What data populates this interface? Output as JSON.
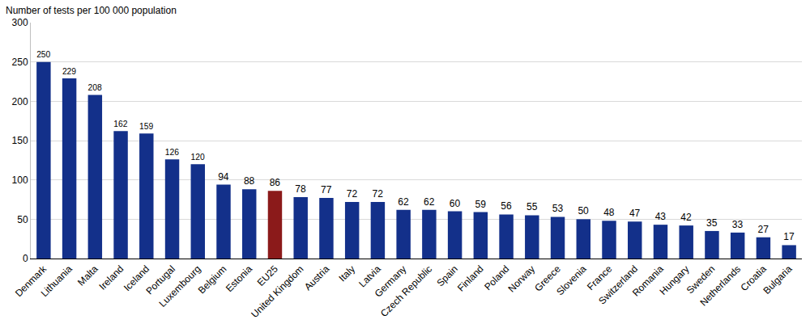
{
  "chart_data": {
    "type": "bar",
    "ylabel": "Number of tests per 100 000 population",
    "categories": [
      "Denmark",
      "Lithuania",
      "Malta",
      "Ireland",
      "Iceland",
      "Portugal",
      "Luxembourg",
      "Belgium",
      "Estonia",
      "EU25",
      "United Kingdom",
      "Austria",
      "Italy",
      "Latvia",
      "Germany",
      "Czech Republic",
      "Spain",
      "Finland",
      "Poland",
      "Norway",
      "Greece",
      "Slovenia",
      "France",
      "Switzerland",
      "Romania",
      "Hungary",
      "Sweden",
      "Netherlands",
      "Croatia",
      "Bulgaria"
    ],
    "values": [
      250,
      229,
      208,
      162,
      159,
      126,
      120,
      94,
      88,
      86,
      78,
      77,
      72,
      72,
      62,
      62,
      60,
      59,
      56,
      55,
      53,
      50,
      48,
      47,
      43,
      42,
      35,
      33,
      27,
      17
    ],
    "colors": [
      "#13308a",
      "#13308a",
      "#13308a",
      "#13308a",
      "#13308a",
      "#13308a",
      "#13308a",
      "#13308a",
      "#13308a",
      "#8b1a1a",
      "#13308a",
      "#13308a",
      "#13308a",
      "#13308a",
      "#13308a",
      "#13308a",
      "#13308a",
      "#13308a",
      "#13308a",
      "#13308a",
      "#13308a",
      "#13308a",
      "#13308a",
      "#13308a",
      "#13308a",
      "#13308a",
      "#13308a",
      "#13308a",
      "#13308a",
      "#13308a"
    ],
    "ylim": [
      0,
      300
    ],
    "yticks": [
      0,
      50,
      100,
      150,
      200,
      250,
      300
    ],
    "grid": true,
    "data_labels": true
  }
}
